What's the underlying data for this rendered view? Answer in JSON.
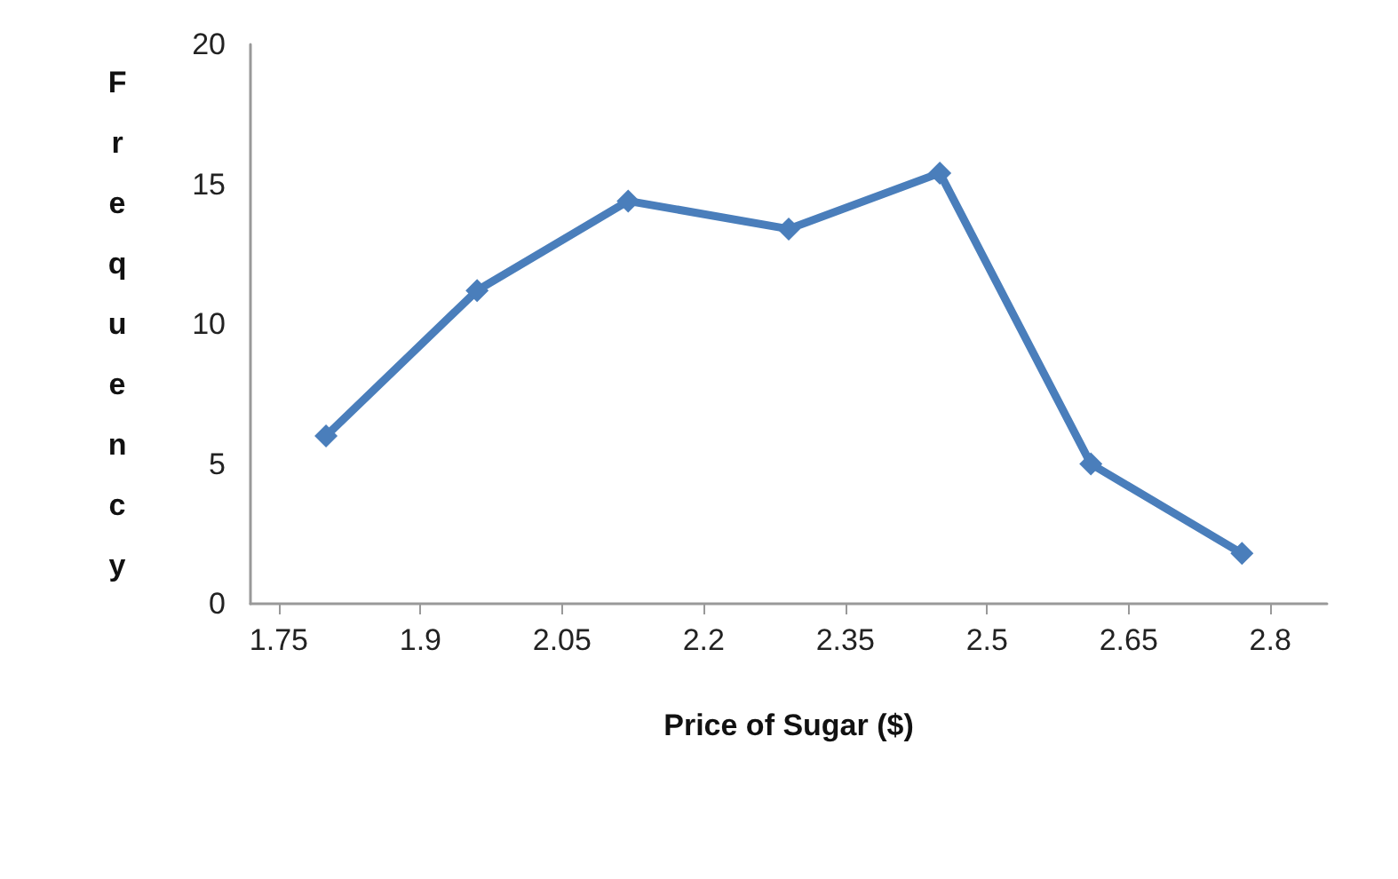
{
  "chart_data": {
    "type": "line",
    "xlabel": "Price of Sugar ($)",
    "ylabel": "Frequency",
    "x": [
      1.8,
      1.96,
      2.12,
      2.29,
      2.45,
      2.61,
      2.77
    ],
    "series": [
      {
        "color": "#4a7ebb",
        "values": [
          6,
          11.2,
          14.4,
          13.4,
          15.4,
          5,
          1.8
        ]
      }
    ],
    "xlim": [
      1.72,
      2.86
    ],
    "xticks": [
      1.75,
      1.9,
      2.05,
      2.2,
      2.35,
      2.5,
      2.65,
      2.8
    ],
    "ylim": [
      0,
      20
    ],
    "yticks": [
      0,
      5,
      10,
      15,
      20
    ],
    "marker": "diamond",
    "line_style": "solid"
  }
}
